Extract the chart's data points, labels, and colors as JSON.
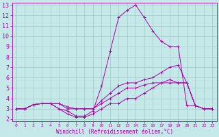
{
  "xlabel": "Windchill (Refroidissement éolien,°C)",
  "xlim": [
    -0.5,
    23.5
  ],
  "ylim": [
    1.8,
    13.2
  ],
  "yticks": [
    2,
    3,
    4,
    5,
    6,
    7,
    8,
    9,
    10,
    11,
    12,
    13
  ],
  "xticks": [
    0,
    1,
    2,
    3,
    4,
    5,
    6,
    7,
    8,
    9,
    10,
    11,
    12,
    13,
    14,
    15,
    16,
    17,
    18,
    19,
    20,
    21,
    22,
    23
  ],
  "background_color": "#c5e8e8",
  "grid_color": "#a0c8c8",
  "line_color": "#aa00aa",
  "lines": [
    {
      "x": [
        0,
        1,
        2,
        3,
        4,
        5,
        6,
        7,
        8,
        9,
        10,
        11,
        12,
        13,
        14,
        15,
        16,
        17,
        18,
        19,
        20,
        21,
        22,
        23
      ],
      "y": [
        3.0,
        3.0,
        3.4,
        3.5,
        3.5,
        3.0,
        2.8,
        2.3,
        2.3,
        2.8,
        5.2,
        8.5,
        11.8,
        12.5,
        13.0,
        11.8,
        10.5,
        9.5,
        9.0,
        9.0,
        3.3,
        3.3,
        3.0,
        3.0
      ]
    },
    {
      "x": [
        0,
        1,
        2,
        3,
        4,
        5,
        6,
        7,
        8,
        9,
        10,
        11,
        12,
        13,
        14,
        15,
        16,
        17,
        18,
        19,
        20,
        21,
        22,
        23
      ],
      "y": [
        3.0,
        3.0,
        3.4,
        3.5,
        3.5,
        3.5,
        3.2,
        3.0,
        3.0,
        3.0,
        3.8,
        4.5,
        5.2,
        5.5,
        5.5,
        5.8,
        6.0,
        6.5,
        7.0,
        7.2,
        5.5,
        3.3,
        3.0,
        3.0
      ]
    },
    {
      "x": [
        0,
        1,
        2,
        3,
        4,
        5,
        6,
        7,
        8,
        9,
        10,
        11,
        12,
        13,
        14,
        15,
        16,
        17,
        18,
        19,
        20,
        21,
        22,
        23
      ],
      "y": [
        3.0,
        3.0,
        3.4,
        3.5,
        3.5,
        3.5,
        3.0,
        3.0,
        3.0,
        3.0,
        3.5,
        4.0,
        4.5,
        5.0,
        5.0,
        5.3,
        5.5,
        5.5,
        5.5,
        5.5,
        5.5,
        3.3,
        3.0,
        3.0
      ]
    },
    {
      "x": [
        0,
        1,
        2,
        3,
        4,
        5,
        6,
        7,
        8,
        9,
        10,
        11,
        12,
        13,
        14,
        15,
        16,
        17,
        18,
        19,
        20,
        21,
        22,
        23
      ],
      "y": [
        3.0,
        3.0,
        3.4,
        3.5,
        3.5,
        3.0,
        2.5,
        2.2,
        2.2,
        2.5,
        3.0,
        3.5,
        3.5,
        4.0,
        4.0,
        4.5,
        5.0,
        5.5,
        5.8,
        5.5,
        5.5,
        3.3,
        3.0,
        3.0
      ]
    }
  ]
}
